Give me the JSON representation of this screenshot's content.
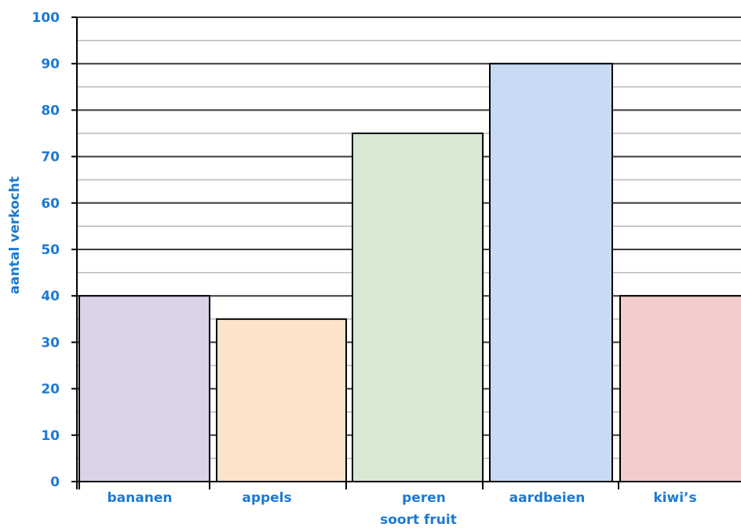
{
  "chart_data": {
    "type": "bar",
    "categories": [
      "bananen",
      "appels",
      "peren",
      "aardbeien",
      "kiwi’s"
    ],
    "values": [
      40,
      35,
      75,
      90,
      40
    ],
    "bar_colors": [
      "#dcd3e8",
      "#fbe4cb",
      "#d8e8d2",
      "#c9daf5",
      "#f2cdcc"
    ],
    "xlabel": "soort fruit",
    "ylabel": "aantal verkocht",
    "ylim": [
      0,
      100
    ],
    "yticks": [
      0,
      10,
      20,
      30,
      40,
      50,
      60,
      70,
      80,
      90,
      100
    ],
    "minor_grid_step": 5,
    "grid": true
  }
}
